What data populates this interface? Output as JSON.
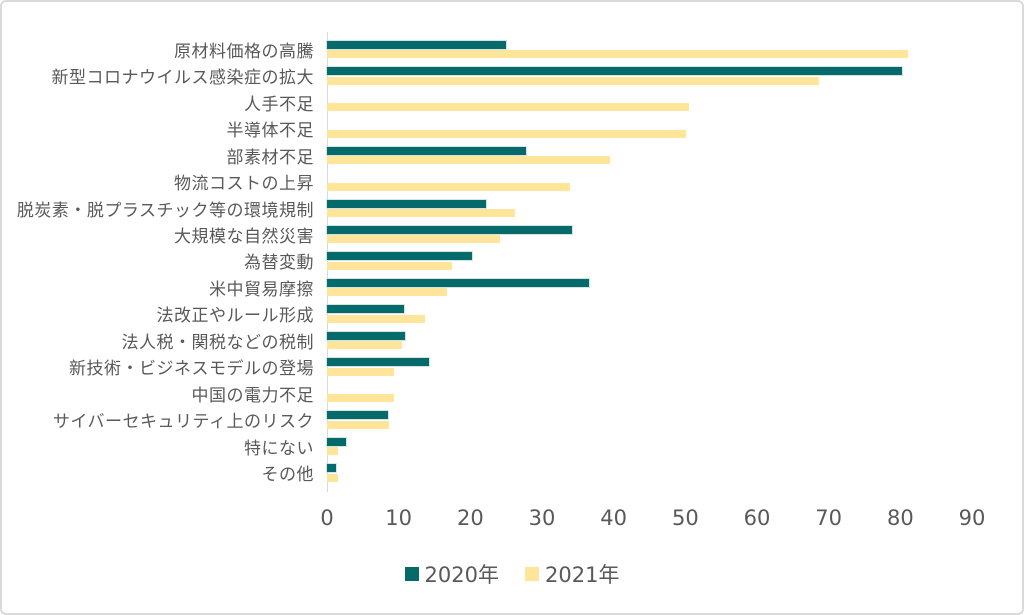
{
  "chart_data": {
    "type": "bar",
    "orientation": "horizontal",
    "title": "",
    "xlabel": "",
    "ylabel": "",
    "grid": false,
    "legend_position": "bottom-center",
    "xlim": [
      0,
      90
    ],
    "x_ticks": [
      0,
      10,
      20,
      30,
      40,
      50,
      60,
      70,
      80,
      90
    ],
    "categories": [
      "原材料価格の高騰",
      "新型コロナウイルス感染症の拡大",
      "人手不足",
      "半導体不足",
      "部素材不足",
      "物流コストの上昇",
      "脱炭素・脱プラスチック等の環境規制",
      "大規模な自然災害",
      "為替変動",
      "米中貿易摩擦",
      "法改正やルール形成",
      "法人税・関税などの税制",
      "新技術・ビジネスモデルの登場",
      "中国の電力不足",
      "サイバーセキュリティ上のリスク",
      "特にない",
      "その他"
    ],
    "series": [
      {
        "name": "2020年",
        "color": "#066a6b",
        "values": [
          25.0,
          80.2,
          null,
          null,
          27.7,
          null,
          22.2,
          34.2,
          20.3,
          36.6,
          10.8,
          10.9,
          14.3,
          null,
          8.5,
          2.7,
          1.2
        ]
      },
      {
        "name": "2021年",
        "color": "#ffe599",
        "values": [
          81.0,
          68.6,
          50.5,
          50.1,
          39.5,
          33.9,
          26.3,
          24.1,
          17.4,
          16.7,
          13.7,
          10.4,
          9.3,
          9.4,
          8.7,
          1.5,
          1.5
        ]
      }
    ]
  },
  "colors": {
    "text": "#595959",
    "axis_line": "#d9d9d9",
    "background": "#ffffff",
    "border": "#dadada"
  }
}
